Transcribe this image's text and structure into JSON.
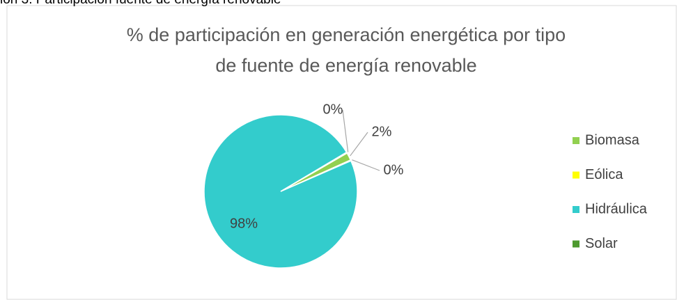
{
  "caption": "ión 3. Participación fuente de energía renovable",
  "chart_data": {
    "type": "pie",
    "title": [
      "% de participación en generación energética por tipo",
      "de fuente de energía renovable"
    ],
    "categories": [
      "Biomasa",
      "Eólica",
      "Hidráulica",
      "Solar"
    ],
    "values": [
      1.6,
      0.2,
      98,
      0.2
    ],
    "value_labels": [
      "2%",
      "0%",
      "98%",
      "0%"
    ],
    "colors": [
      "#92d050",
      "#ffff00",
      "#33cccc",
      "#4e9a2f"
    ],
    "legend": "right"
  }
}
